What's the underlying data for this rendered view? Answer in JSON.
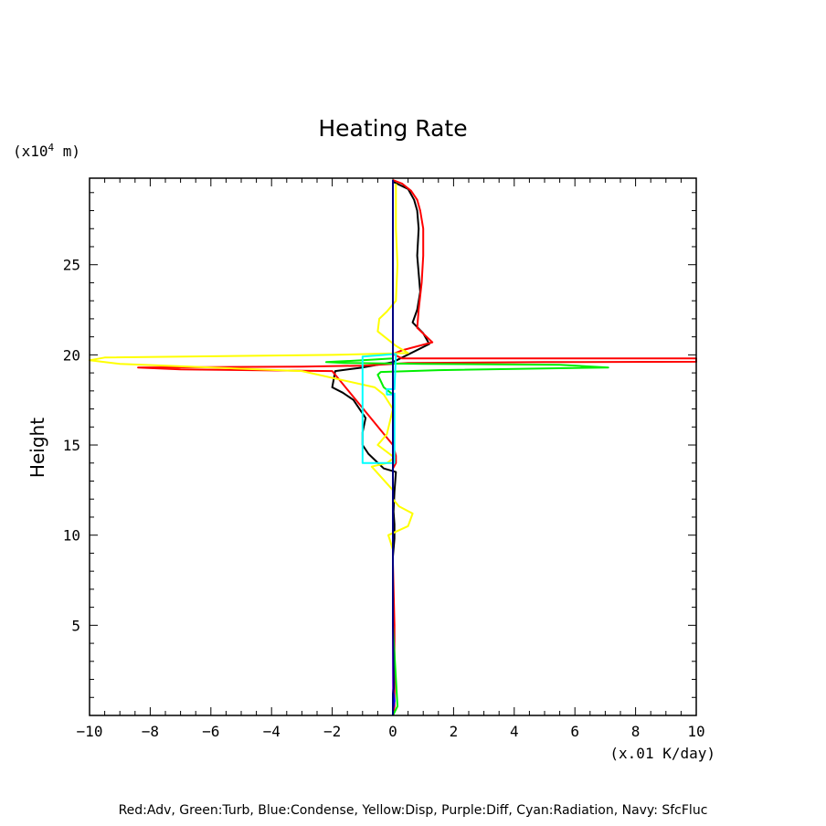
{
  "chart_data": {
    "type": "line",
    "title": "Heating Rate",
    "y_units": "(x10",
    "y_units_sup": "4",
    "y_units_end": " m)",
    "ylabel": "Height",
    "xlabel": "(x.01 K/day)",
    "xlim": [
      -10,
      10
    ],
    "ylim": [
      0,
      29.8
    ],
    "xticks": [
      -10,
      -8,
      -6,
      -4,
      -2,
      0,
      2,
      4,
      6,
      8,
      10
    ],
    "yticks": [
      5,
      10,
      15,
      20,
      25
    ],
    "legend_text": "Red:Adv, Green:Turb, Blue:Condense, Yellow:Disp, Purple:Diff, Cyan:Radiation, Navy: SfcFluc",
    "series": [
      {
        "key": "total",
        "color": "#000000",
        "x": [
          0,
          0,
          0,
          0,
          0.05,
          0.05,
          0.02,
          0.05,
          0.1,
          -0.3,
          -0.8,
          -1.0,
          -1.0,
          -0.9,
          -1.3,
          -1.65,
          -2.0,
          -1.9,
          -1.0,
          0,
          1.2,
          1.0,
          0.65,
          0.8,
          0.9,
          0.8,
          0.85,
          0.8,
          0.7,
          0.5,
          0
        ],
        "y": [
          0,
          0.5,
          5,
          8.8,
          9.8,
          10.6,
          11.3,
          12.4,
          13.5,
          13.7,
          14.5,
          15.0,
          15.7,
          16.5,
          17.5,
          17.9,
          18.2,
          19.1,
          19.3,
          19.6,
          20.6,
          21.2,
          21.8,
          22.5,
          23.5,
          25.5,
          27,
          28,
          28.6,
          29.2,
          29.6
        ]
      },
      {
        "key": "adv",
        "color": "#ff0000",
        "x": [
          0,
          0.05,
          0.05,
          0,
          0,
          0.1,
          0.1,
          0,
          -2.0,
          -7.0,
          -8.4,
          -3.0,
          -1.0,
          0,
          0.5,
          5.0,
          10.0,
          10.0,
          0.3,
          0,
          0.3,
          1.3,
          0.8,
          0.85,
          0.95,
          1.0,
          1.0,
          0.9,
          0.8,
          0.6,
          0.3,
          0
        ],
        "y": [
          0,
          0.5,
          5,
          8.5,
          13.7,
          14.0,
          14.4,
          15.0,
          19.1,
          19.2,
          19.3,
          19.35,
          19.4,
          19.5,
          19.55,
          19.6,
          19.62,
          19.8,
          19.8,
          20.05,
          20.25,
          20.7,
          21.5,
          22.5,
          24,
          25.5,
          27,
          28,
          28.6,
          29.1,
          29.5,
          29.7
        ]
      },
      {
        "key": "turb",
        "color": "#00ee00",
        "x": [
          0,
          0.15,
          0,
          0,
          -0.3,
          -0.5,
          -0.4,
          1.5,
          7.1,
          5.5,
          1.0,
          -1.6,
          -2.2,
          -1.0,
          0,
          0
        ],
        "y": [
          0,
          0.5,
          5,
          17.8,
          18.2,
          18.9,
          19.05,
          19.15,
          19.3,
          19.45,
          19.5,
          19.55,
          19.6,
          19.7,
          19.8,
          29.7
        ]
      },
      {
        "key": "condense",
        "color": "#0000ff",
        "x": [
          0,
          0,
          0.05,
          0,
          0
        ],
        "y": [
          0,
          0.3,
          0.8,
          1.5,
          29.7
        ]
      },
      {
        "key": "disp",
        "color": "#ffff00",
        "x": [
          0,
          -0.15,
          0.5,
          0.65,
          0.2,
          0,
          0,
          -0.7,
          -0.2,
          0.05,
          -0.5,
          -0.2,
          0,
          -0.3,
          -0.6,
          -3.0,
          -9.0,
          -10.0,
          -9.5,
          -2.0,
          0.5,
          0.1,
          -0.5,
          -0.45,
          -0.2,
          0.1,
          0.15,
          0.1,
          0.1
        ],
        "y": [
          9.2,
          10.0,
          10.5,
          11.2,
          11.6,
          12.0,
          12.5,
          13.8,
          14.0,
          14.3,
          15.0,
          15.6,
          17.0,
          17.8,
          18.2,
          19.1,
          19.5,
          19.7,
          19.85,
          20.0,
          20.1,
          20.5,
          21.3,
          22.0,
          22.4,
          23.0,
          25.0,
          27.0,
          29.5
        ]
      },
      {
        "key": "diff",
        "color": "#a020f0",
        "x": [
          0,
          0,
          0,
          0
        ],
        "y": [
          0,
          8.8,
          19.5,
          29.7
        ]
      },
      {
        "key": "radiation",
        "color": "#00ffff",
        "x": [
          0.05,
          0.05,
          -1.0,
          -1.0,
          -1.0,
          0.1,
          0.05,
          -0.2,
          -0.2,
          0
        ],
        "y": [
          17.9,
          14.0,
          14.0,
          15.0,
          19.9,
          20.05,
          18.1,
          18.1,
          17.8,
          17.8
        ]
      },
      {
        "key": "sfcfluc",
        "color": "#000080",
        "x": [
          0,
          0,
          0.03,
          0,
          0
        ],
        "y": [
          0,
          1.2,
          1.5,
          5,
          29.7
        ]
      }
    ]
  }
}
